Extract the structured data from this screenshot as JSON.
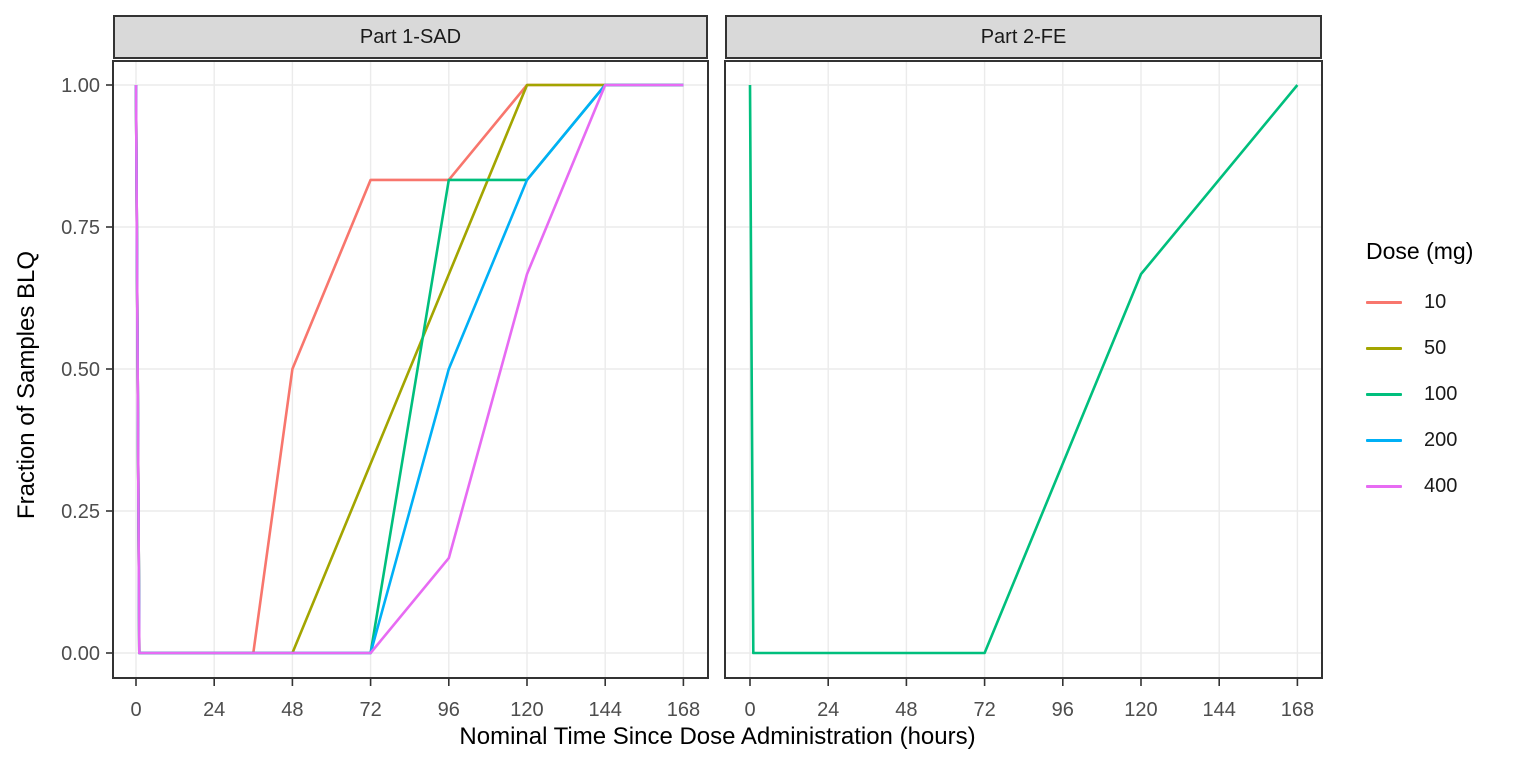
{
  "style": {
    "background": "#FFFFFF",
    "grid_color": "#EBEBEB",
    "panel_border_color": "#333333",
    "strip_bg": "#D9D9D9",
    "tick_color": "#333333",
    "tick_label_color": "#4D4D4D",
    "axis_title_color": "#000000"
  },
  "legend": {
    "title": "Dose (mg)",
    "items": [
      {
        "label": "10",
        "color": "#F8766D"
      },
      {
        "label": "50",
        "color": "#A3A500"
      },
      {
        "label": "100",
        "color": "#00BF7D"
      },
      {
        "label": "200",
        "color": "#00B0F6"
      },
      {
        "label": "400",
        "color": "#E76BF3"
      }
    ]
  },
  "chart_data": {
    "type": "line",
    "title": "",
    "xlabel": "Nominal Time Since Dose Administration (hours)",
    "ylabel": "Fraction of Samples BLQ",
    "xlim": [
      0,
      168
    ],
    "ylim": [
      0,
      1
    ],
    "grid": true,
    "legend_position": "right",
    "x_ticks": [
      0,
      24,
      48,
      72,
      96,
      120,
      144,
      168
    ],
    "y_ticks": [
      {
        "value": 0,
        "label": "0.00"
      },
      {
        "value": 0.25,
        "label": "0.25"
      },
      {
        "value": 0.5,
        "label": "0.50"
      },
      {
        "value": 0.75,
        "label": "0.75"
      },
      {
        "value": 1,
        "label": "1.00"
      }
    ],
    "facets": [
      {
        "label": "Part 1-SAD",
        "series": [
          {
            "dose": "10",
            "color": "#F8766D",
            "points": [
              [
                0,
                1
              ],
              [
                1,
                0
              ],
              [
                36,
                0
              ],
              [
                48,
                0.5
              ],
              [
                72,
                0.833
              ],
              [
                96,
                0.833
              ],
              [
                120,
                1
              ],
              [
                168,
                1
              ]
            ]
          },
          {
            "dose": "50",
            "color": "#A3A500",
            "points": [
              [
                0,
                1
              ],
              [
                1,
                0
              ],
              [
                48,
                0
              ],
              [
                120,
                1
              ],
              [
                168,
                1
              ]
            ]
          },
          {
            "dose": "100",
            "color": "#00BF7D",
            "points": [
              [
                0,
                1
              ],
              [
                1,
                0
              ],
              [
                72,
                0
              ],
              [
                96,
                0.833
              ],
              [
                120,
                0.833
              ],
              [
                144,
                1
              ],
              [
                168,
                1
              ]
            ]
          },
          {
            "dose": "200",
            "color": "#00B0F6",
            "points": [
              [
                0,
                1
              ],
              [
                1,
                0
              ],
              [
                72,
                0
              ],
              [
                96,
                0.5
              ],
              [
                120,
                0.833
              ],
              [
                144,
                1
              ],
              [
                168,
                1
              ]
            ]
          },
          {
            "dose": "400",
            "color": "#E76BF3",
            "points": [
              [
                0,
                1
              ],
              [
                1,
                0
              ],
              [
                72,
                0
              ],
              [
                96,
                0.167
              ],
              [
                120,
                0.667
              ],
              [
                144,
                1
              ],
              [
                168,
                1
              ]
            ]
          }
        ]
      },
      {
        "label": "Part 2-FE",
        "series": [
          {
            "dose": "100",
            "color": "#00BF7D",
            "points": [
              [
                0,
                1
              ],
              [
                1,
                0
              ],
              [
                72,
                0
              ],
              [
                120,
                0.667
              ],
              [
                168,
                1
              ]
            ]
          }
        ]
      }
    ]
  }
}
